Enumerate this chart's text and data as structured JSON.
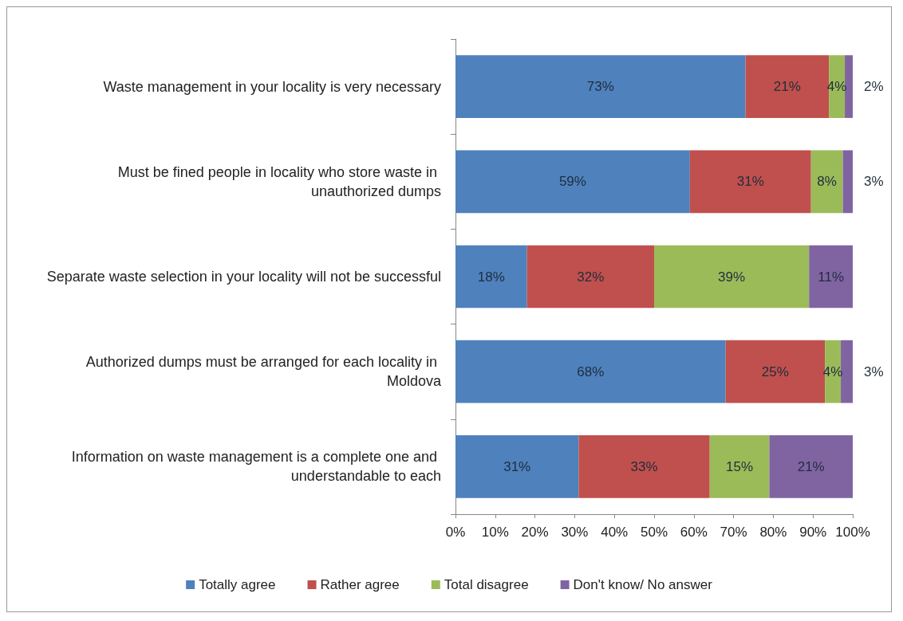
{
  "chart_data": {
    "type": "bar",
    "orientation": "horizontal",
    "stacked": true,
    "categories": [
      "Waste management in your locality is very necessary",
      "Must be fined people in locality who store waste in unauthorized dumps",
      "Separate waste selection in your locality will not be successful",
      "Authorized dumps must be arranged for each locality in Moldova",
      "Information on waste management is a complete one and understandable to each"
    ],
    "series": [
      {
        "name": "Totally agree",
        "color": "#4f81bd",
        "values": [
          73,
          59,
          18,
          68,
          31
        ],
        "value_labels": [
          "73%",
          "59%",
          "18%",
          "68%",
          "31%"
        ]
      },
      {
        "name": "Rather agree",
        "color": "#c0504d",
        "values": [
          21,
          30.5,
          32,
          25,
          33
        ],
        "value_labels": [
          "21%",
          "31%",
          "32%",
          "25%",
          "33%"
        ]
      },
      {
        "name": "Total disagree",
        "color": "#9bbb59",
        "values": [
          4,
          8,
          39,
          4,
          15
        ],
        "value_labels": [
          "4%",
          "8%",
          "39%",
          "4%",
          "15%"
        ]
      },
      {
        "name": "Don't know/ No answer",
        "color": "#8064a2",
        "values": [
          2,
          2.5,
          11,
          3,
          21
        ],
        "value_labels": [
          "2%",
          "3%",
          "11%",
          "3%",
          "21%"
        ]
      }
    ],
    "xlim": [
      0,
      100
    ],
    "xticks": [
      {
        "value": 0,
        "label": "0%"
      },
      {
        "value": 10,
        "label": "10%"
      },
      {
        "value": 20,
        "label": "20%"
      },
      {
        "value": 30,
        "label": "30%"
      },
      {
        "value": 40,
        "label": "40%"
      },
      {
        "value": 50,
        "label": "50%"
      },
      {
        "value": 60,
        "label": "60%"
      },
      {
        "value": 70,
        "label": "70%"
      },
      {
        "value": 80,
        "label": "80%"
      },
      {
        "value": 90,
        "label": "90%"
      },
      {
        "value": 100,
        "label": "100%"
      }
    ],
    "grid": false,
    "legend": "bottom"
  }
}
